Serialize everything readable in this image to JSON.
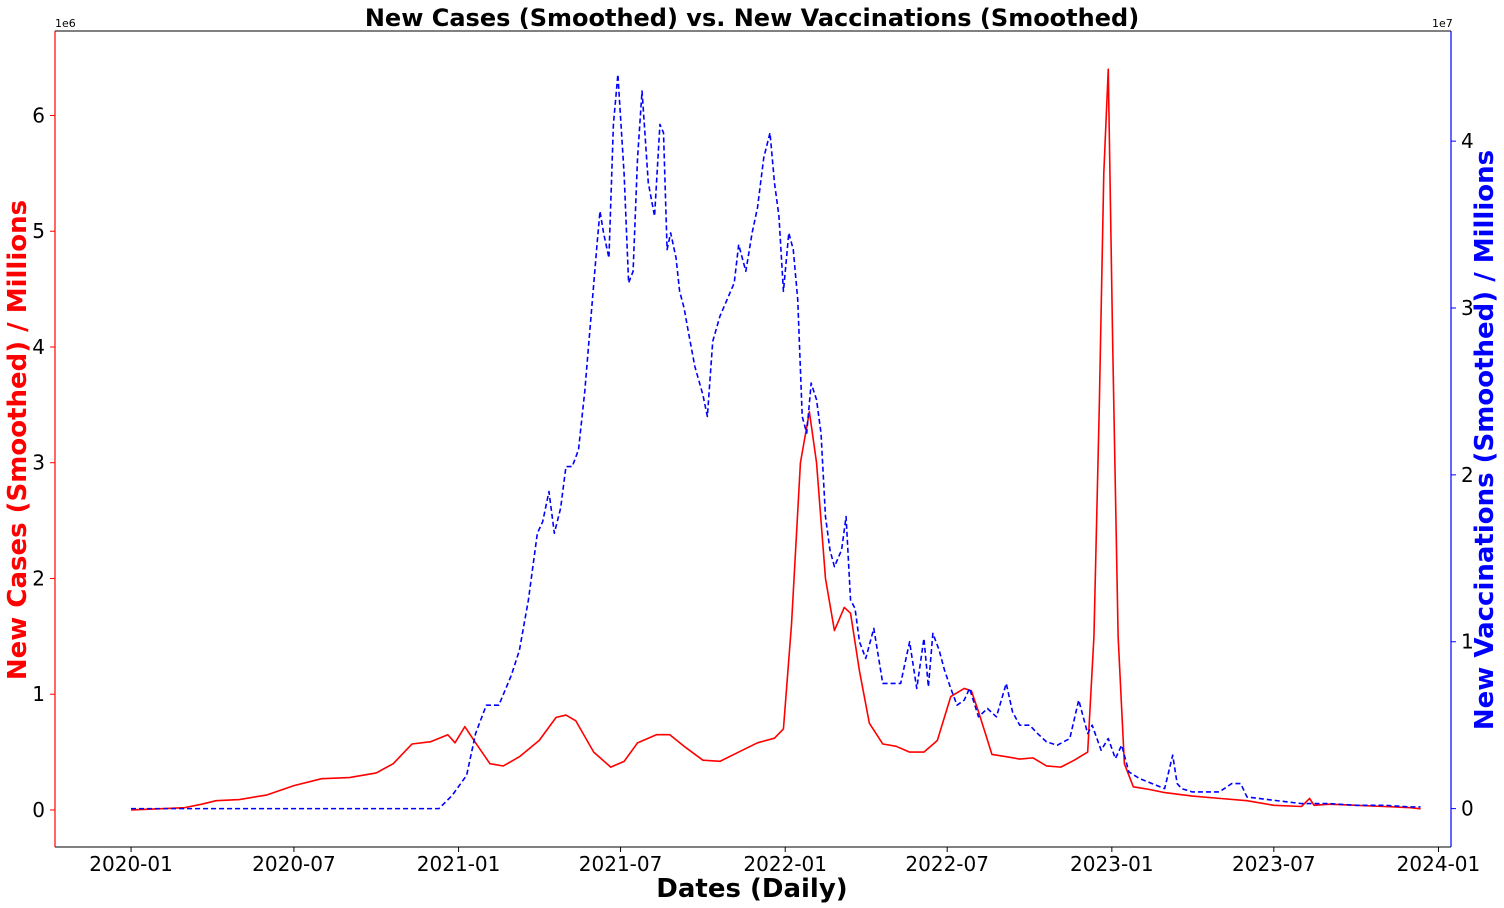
{
  "chart_data": {
    "type": "line",
    "title": "New Cases (Smoothed) vs. New Vaccinations (Smoothed)",
    "xlabel": "Dates (Daily)",
    "ylabel_left": "New Cases (Smoothed) / Millions",
    "ylabel_right": "New Vaccinations (Smoothed) / Millions",
    "left_axis_offset": "1e6",
    "right_axis_offset": "1e7",
    "left_color": "#ff0000",
    "right_color": "#0000ff",
    "x_tick_labels": [
      "2020-01",
      "2020-07",
      "2021-01",
      "2021-07",
      "2022-01",
      "2022-07",
      "2023-01",
      "2023-07",
      "2024-01"
    ],
    "x_ticks": [
      "2020-01-01",
      "2020-07-01",
      "2021-01-01",
      "2021-07-01",
      "2022-01-01",
      "2022-07-01",
      "2023-01-01",
      "2023-07-01",
      "2024-01-01"
    ],
    "xlim": [
      "2019-10-08",
      "2024-01-15"
    ],
    "left_ylim": [
      -0.32,
      6.73
    ],
    "right_ylim": [
      -0.23,
      4.66
    ],
    "left_yticks": [
      0,
      1,
      2,
      3,
      4,
      5,
      6
    ],
    "right_yticks": [
      0,
      1,
      2,
      3,
      4
    ],
    "grid": false,
    "series": [
      {
        "name": "New Cases (Smoothed)",
        "axis": "left",
        "style": "solid",
        "x": [
          "2020-01-01",
          "2020-02-01",
          "2020-03-01",
          "2020-03-20",
          "2020-04-05",
          "2020-05-01",
          "2020-06-01",
          "2020-07-01",
          "2020-08-01",
          "2020-09-01",
          "2020-10-01",
          "2020-10-20",
          "2020-11-10",
          "2020-12-01",
          "2020-12-20",
          "2020-12-28",
          "2021-01-08",
          "2021-01-20",
          "2021-02-05",
          "2021-02-20",
          "2021-03-10",
          "2021-04-01",
          "2021-04-20",
          "2021-05-01",
          "2021-05-12",
          "2021-06-01",
          "2021-06-20",
          "2021-07-05",
          "2021-07-20",
          "2021-08-10",
          "2021-08-25",
          "2021-09-10",
          "2021-10-01",
          "2021-10-20",
          "2021-11-10",
          "2021-12-01",
          "2021-12-20",
          "2021-12-30",
          "2022-01-08",
          "2022-01-18",
          "2022-01-28",
          "2022-02-05",
          "2022-02-15",
          "2022-02-25",
          "2022-03-08",
          "2022-03-15",
          "2022-03-25",
          "2022-04-05",
          "2022-04-20",
          "2022-05-05",
          "2022-05-20",
          "2022-06-05",
          "2022-06-20",
          "2022-07-05",
          "2022-07-20",
          "2022-07-28",
          "2022-08-05",
          "2022-08-20",
          "2022-09-05",
          "2022-09-20",
          "2022-10-05",
          "2022-10-20",
          "2022-11-05",
          "2022-11-20",
          "2022-12-05",
          "2022-12-12",
          "2022-12-18",
          "2022-12-23",
          "2022-12-28",
          "2023-01-02",
          "2023-01-08",
          "2023-01-15",
          "2023-01-25",
          "2023-02-10",
          "2023-03-01",
          "2023-04-01",
          "2023-05-01",
          "2023-06-01",
          "2023-07-01",
          "2023-08-01",
          "2023-08-10",
          "2023-08-15",
          "2023-09-01",
          "2023-10-01",
          "2023-11-01",
          "2023-12-01",
          "2023-12-12"
        ],
        "values": [
          0,
          0.01,
          0.02,
          0.05,
          0.08,
          0.09,
          0.13,
          0.21,
          0.27,
          0.28,
          0.32,
          0.4,
          0.57,
          0.59,
          0.65,
          0.58,
          0.72,
          0.58,
          0.4,
          0.38,
          0.46,
          0.6,
          0.8,
          0.82,
          0.77,
          0.5,
          0.37,
          0.42,
          0.58,
          0.65,
          0.65,
          0.55,
          0.43,
          0.42,
          0.5,
          0.58,
          0.62,
          0.7,
          1.6,
          3.0,
          3.44,
          3.0,
          2.0,
          1.55,
          1.75,
          1.7,
          1.2,
          0.75,
          0.57,
          0.55,
          0.5,
          0.5,
          0.6,
          0.98,
          1.05,
          1.03,
          0.85,
          0.48,
          0.46,
          0.44,
          0.45,
          0.38,
          0.37,
          0.43,
          0.5,
          1.5,
          3.5,
          5.5,
          6.4,
          4.0,
          1.5,
          0.4,
          0.2,
          0.18,
          0.15,
          0.12,
          0.1,
          0.08,
          0.04,
          0.03,
          0.1,
          0.04,
          0.05,
          0.04,
          0.03,
          0.02,
          0.01
        ]
      },
      {
        "name": "New Vaccinations (Smoothed)",
        "axis": "right",
        "style": "dashed",
        "x": [
          "2020-01-01",
          "2020-12-10",
          "2020-12-25",
          "2021-01-10",
          "2021-01-20",
          "2021-02-01",
          "2021-02-15",
          "2021-03-01",
          "2021-03-10",
          "2021-03-20",
          "2021-03-30",
          "2021-04-05",
          "2021-04-12",
          "2021-04-18",
          "2021-04-25",
          "2021-05-01",
          "2021-05-08",
          "2021-05-15",
          "2021-05-22",
          "2021-05-29",
          "2021-06-05",
          "2021-06-08",
          "2021-06-12",
          "2021-06-18",
          "2021-06-23",
          "2021-06-28",
          "2021-07-05",
          "2021-07-10",
          "2021-07-15",
          "2021-07-20",
          "2021-07-25",
          "2021-08-01",
          "2021-08-08",
          "2021-08-14",
          "2021-08-18",
          "2021-08-22",
          "2021-08-26",
          "2021-09-01",
          "2021-09-05",
          "2021-09-10",
          "2021-09-15",
          "2021-09-22",
          "2021-10-01",
          "2021-10-06",
          "2021-10-12",
          "2021-10-20",
          "2021-10-28",
          "2021-11-05",
          "2021-11-10",
          "2021-11-18",
          "2021-11-25",
          "2021-12-01",
          "2021-12-08",
          "2021-12-15",
          "2021-12-20",
          "2021-12-25",
          "2021-12-30",
          "2022-01-05",
          "2022-01-10",
          "2022-01-15",
          "2022-01-20",
          "2022-01-25",
          "2022-01-30",
          "2022-02-05",
          "2022-02-10",
          "2022-02-15",
          "2022-02-20",
          "2022-02-25",
          "2022-03-05",
          "2022-03-10",
          "2022-03-15",
          "2022-03-20",
          "2022-03-25",
          "2022-04-01",
          "2022-04-10",
          "2022-04-20",
          "2022-05-01",
          "2022-05-10",
          "2022-05-20",
          "2022-05-28",
          "2022-06-05",
          "2022-06-10",
          "2022-06-15",
          "2022-06-22",
          "2022-06-28",
          "2022-07-05",
          "2022-07-12",
          "2022-07-20",
          "2022-07-26",
          "2022-08-05",
          "2022-08-15",
          "2022-08-25",
          "2022-09-05",
          "2022-09-12",
          "2022-09-20",
          "2022-10-01",
          "2022-10-10",
          "2022-10-20",
          "2022-11-01",
          "2022-11-15",
          "2022-11-25",
          "2022-12-05",
          "2022-12-10",
          "2022-12-20",
          "2022-12-28",
          "2023-01-05",
          "2023-01-12",
          "2023-01-20",
          "2023-02-01",
          "2023-02-15",
          "2023-03-01",
          "2023-03-10",
          "2023-03-15",
          "2023-03-20",
          "2023-04-01",
          "2023-05-01",
          "2023-05-15",
          "2023-05-25",
          "2023-06-01",
          "2023-07-01",
          "2023-08-01",
          "2023-09-01",
          "2023-10-01",
          "2023-11-01",
          "2023-12-01",
          "2023-12-12"
        ],
        "values": [
          0,
          0,
          0.08,
          0.2,
          0.45,
          0.62,
          0.62,
          0.8,
          0.95,
          1.25,
          1.65,
          1.72,
          1.9,
          1.65,
          1.8,
          2.05,
          2.05,
          2.15,
          2.5,
          2.95,
          3.4,
          3.58,
          3.45,
          3.3,
          4.1,
          4.4,
          3.8,
          3.15,
          3.22,
          3.9,
          4.3,
          3.75,
          3.55,
          4.1,
          4.05,
          3.35,
          3.45,
          3.3,
          3.1,
          3.0,
          2.85,
          2.65,
          2.48,
          2.35,
          2.8,
          2.95,
          3.05,
          3.15,
          3.38,
          3.22,
          3.45,
          3.6,
          3.9,
          4.05,
          3.75,
          3.55,
          3.1,
          3.45,
          3.35,
          3.05,
          2.35,
          2.25,
          2.55,
          2.45,
          2.25,
          1.75,
          1.55,
          1.45,
          1.55,
          1.75,
          1.25,
          1.2,
          1.0,
          0.9,
          1.08,
          0.75,
          0.75,
          0.75,
          1.0,
          0.72,
          1.02,
          0.73,
          1.05,
          0.95,
          0.83,
          0.72,
          0.62,
          0.65,
          0.72,
          0.55,
          0.6,
          0.55,
          0.75,
          0.58,
          0.5,
          0.5,
          0.45,
          0.4,
          0.38,
          0.42,
          0.65,
          0.45,
          0.5,
          0.35,
          0.42,
          0.3,
          0.38,
          0.22,
          0.18,
          0.15,
          0.12,
          0.32,
          0.15,
          0.12,
          0.1,
          0.1,
          0.15,
          0.15,
          0.07,
          0.05,
          0.03,
          0.03,
          0.02,
          0.02,
          0.01,
          0.01
        ]
      }
    ]
  }
}
